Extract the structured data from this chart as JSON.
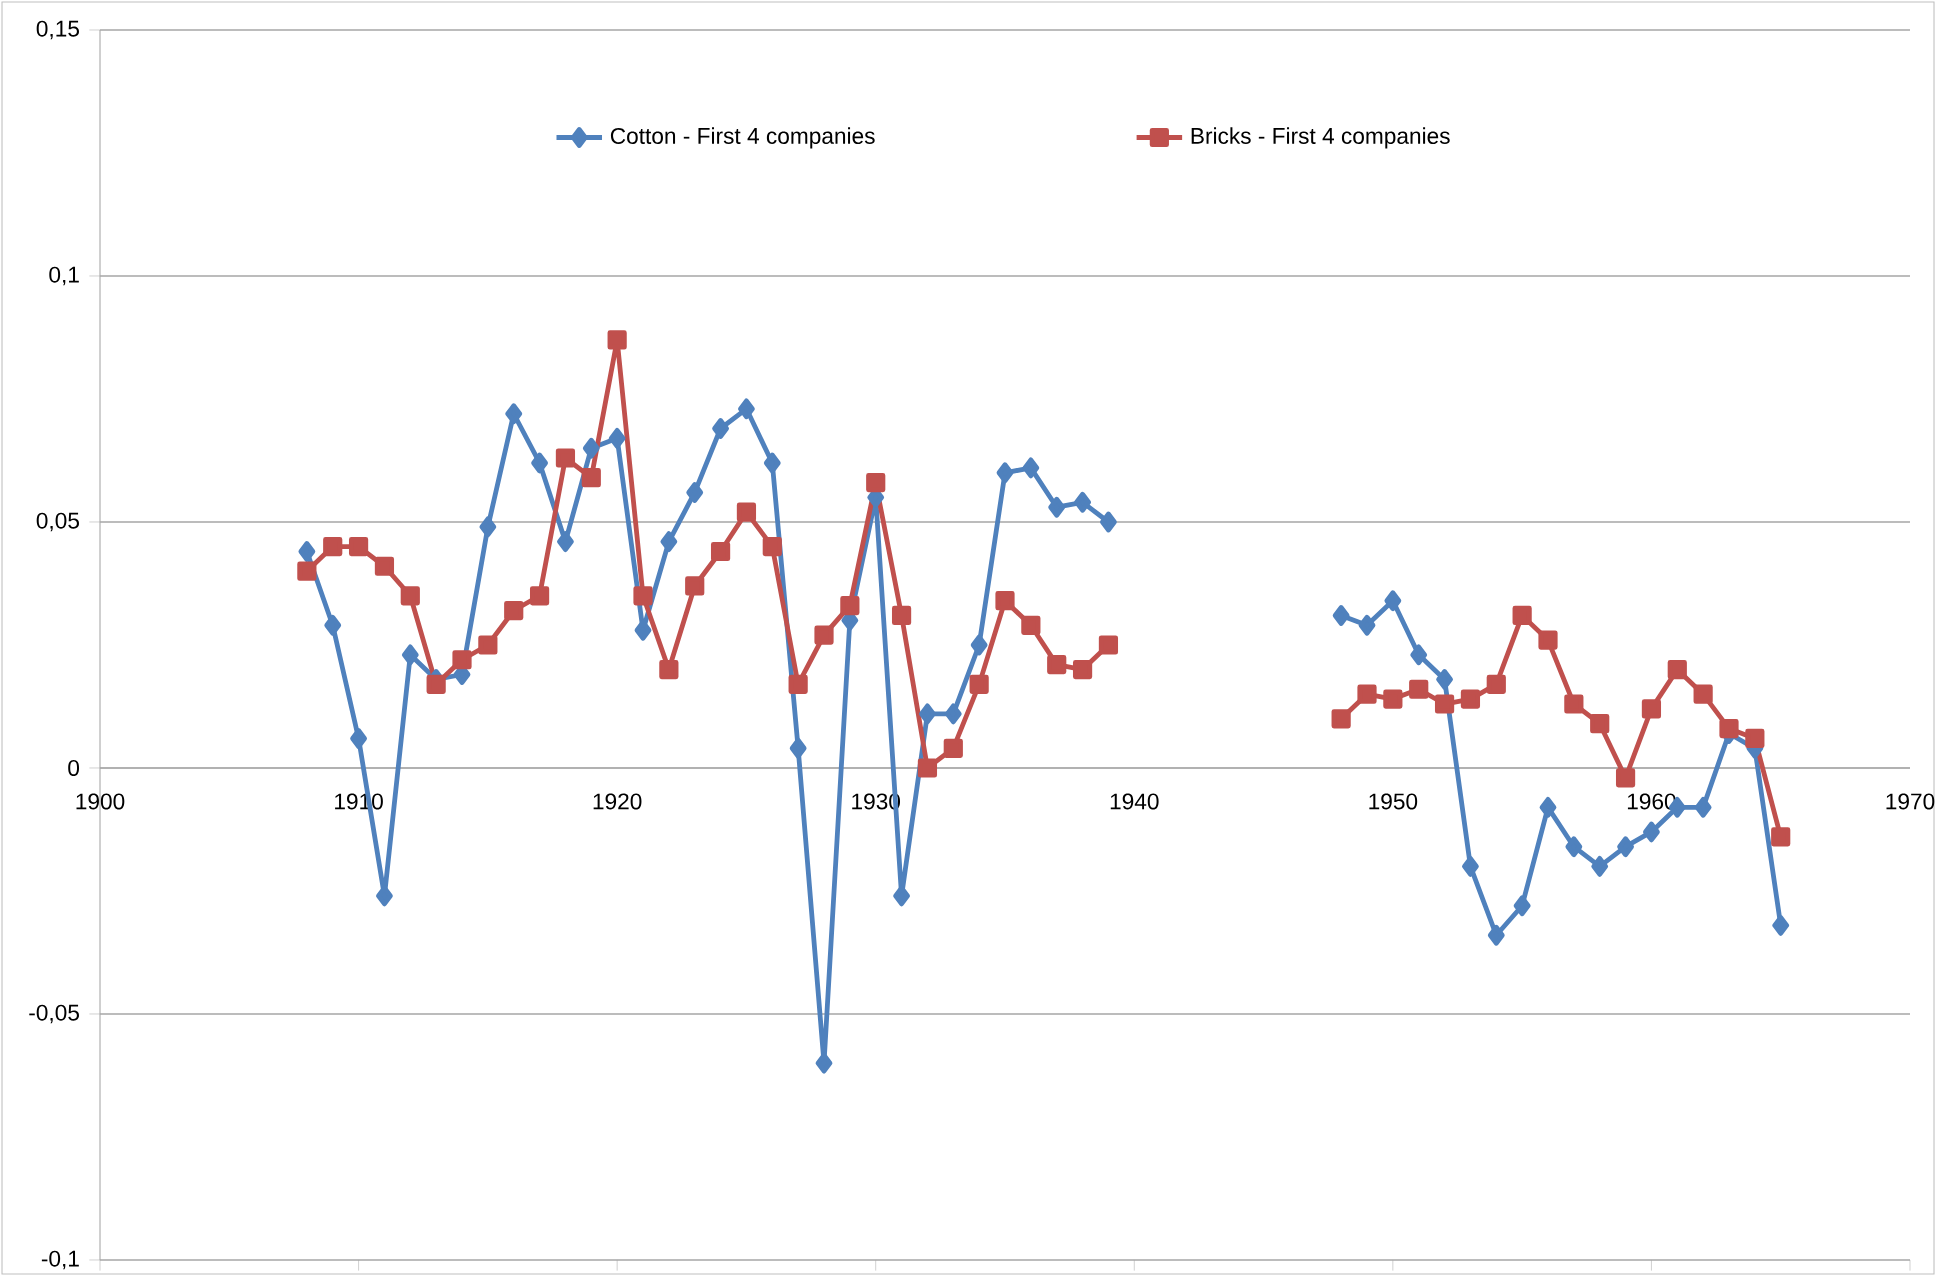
{
  "chart_data": {
    "type": "line",
    "x": [
      1908,
      1909,
      1910,
      1911,
      1912,
      1913,
      1914,
      1915,
      1916,
      1917,
      1918,
      1919,
      1920,
      1921,
      1922,
      1923,
      1924,
      1925,
      1926,
      1927,
      1928,
      1929,
      1930,
      1931,
      1932,
      1933,
      1934,
      1935,
      1936,
      1937,
      1938,
      1939,
      1940,
      1941,
      1942,
      1943,
      1944,
      1945,
      1946,
      1947,
      1948,
      1949,
      1950,
      1951,
      1952,
      1953,
      1954,
      1955,
      1956,
      1957,
      1958,
      1959,
      1960,
      1961,
      1962,
      1963,
      1964,
      1965
    ],
    "series": [
      {
        "name": "Cotton - First 4 companies",
        "color": "#4f81bd",
        "marker": "diamond",
        "values": [
          0.044,
          0.029,
          0.006,
          -0.026,
          0.023,
          0.018,
          0.019,
          0.049,
          0.072,
          0.062,
          0.046,
          0.065,
          0.067,
          0.028,
          0.046,
          0.056,
          0.069,
          0.073,
          0.062,
          0.004,
          -0.06,
          0.03,
          0.055,
          -0.026,
          0.011,
          0.011,
          0.025,
          0.06,
          0.061,
          0.053,
          0.054,
          0.05,
          null,
          null,
          null,
          null,
          null,
          null,
          null,
          null,
          0.031,
          0.029,
          0.034,
          0.023,
          0.018,
          -0.02,
          -0.034,
          -0.028,
          -0.008,
          -0.016,
          -0.02,
          -0.016,
          -0.013,
          -0.008,
          -0.008,
          0.007,
          0.004,
          -0.032
        ]
      },
      {
        "name": "Bricks - First 4 companies",
        "color": "#c0504d",
        "marker": "square",
        "values": [
          0.04,
          0.045,
          0.045,
          0.041,
          0.035,
          0.017,
          0.022,
          0.025,
          0.032,
          0.035,
          0.063,
          0.059,
          0.087,
          0.035,
          0.02,
          0.037,
          0.044,
          0.052,
          0.045,
          0.017,
          0.027,
          0.033,
          0.058,
          0.031,
          0.0,
          0.004,
          0.017,
          0.034,
          0.029,
          0.021,
          0.02,
          0.025,
          null,
          null,
          null,
          null,
          null,
          null,
          null,
          null,
          0.01,
          0.015,
          0.014,
          0.016,
          0.013,
          0.014,
          0.017,
          0.031,
          0.026,
          0.013,
          0.009,
          -0.002,
          0.012,
          0.02,
          0.015,
          0.008,
          0.006,
          -0.014
        ]
      }
    ],
    "xlim": [
      1900,
      1970
    ],
    "xticks": [
      1900,
      1910,
      1920,
      1930,
      1940,
      1950,
      1960,
      1970
    ],
    "ylim": [
      -0.1,
      0.15
    ],
    "yticks": [
      {
        "value": -0.1,
        "label": "-0,1"
      },
      {
        "value": -0.05,
        "label": "-0,05"
      },
      {
        "value": 0,
        "label": "0"
      },
      {
        "value": 0.05,
        "label": "0,05"
      },
      {
        "value": 0.1,
        "label": "0,1"
      },
      {
        "value": 0.15,
        "label": "0,15"
      }
    ],
    "grid": "y",
    "legend": "top"
  }
}
